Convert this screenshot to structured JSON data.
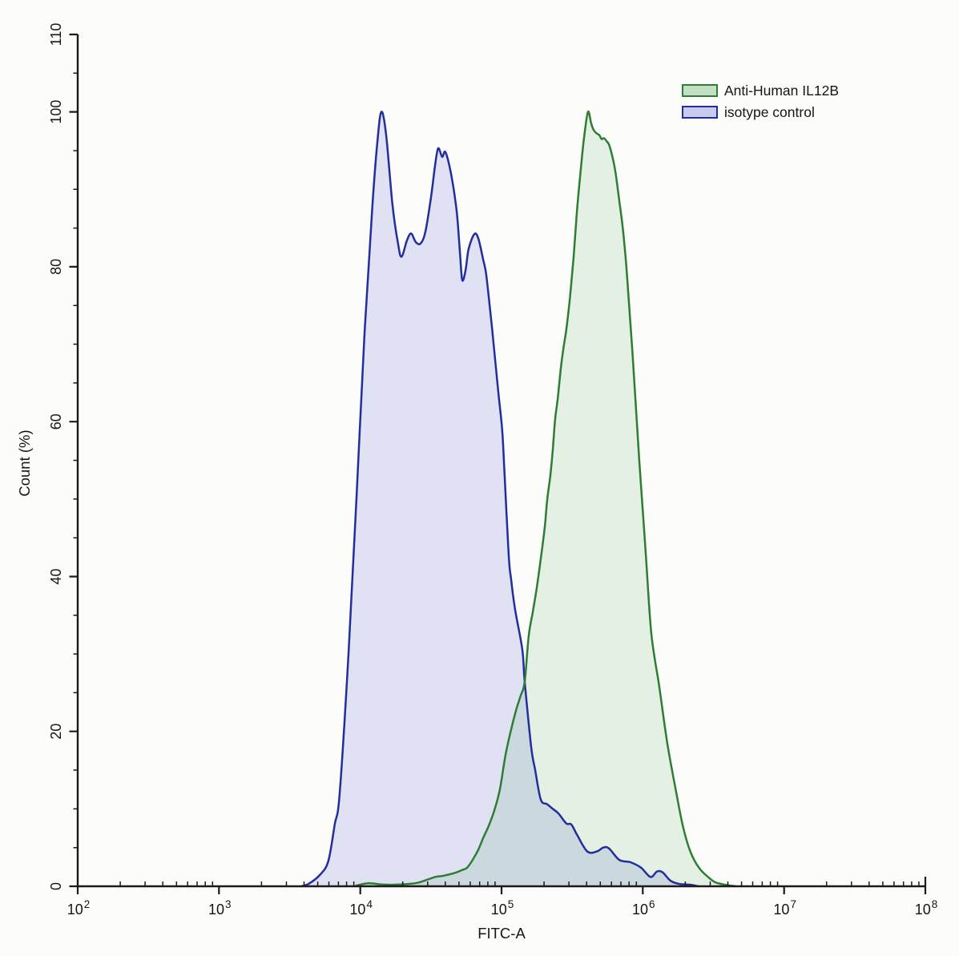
{
  "figure": {
    "background": "#fcfcfa",
    "axis_color": "#1b1b1b",
    "text_color": "#161616"
  },
  "chart_data": {
    "type": "area",
    "title": "",
    "xlabel": "FITC-A",
    "ylabel": "Count  (%)",
    "x_scale": "log10",
    "xlim": [
      100,
      100000000
    ],
    "ylim": [
      0,
      110
    ],
    "x_tick_base": "10",
    "x_tick_exponents": [
      2,
      3,
      4,
      5,
      6,
      7,
      8
    ],
    "y_major_ticks": [
      0,
      20,
      40,
      60,
      80,
      100,
      110
    ],
    "y_minor_step": 5,
    "grid": false,
    "legend_position": "top-right",
    "series": [
      {
        "name": "Anti-Human IL12B",
        "line_color": "#2e7d34",
        "fill_color": "#3da04a",
        "fill_opacity": 0.12,
        "legend_fill_opacity": 0.3,
        "points": [
          [
            9400,
            0.1
          ],
          [
            11400,
            0.4
          ],
          [
            13900,
            0.25
          ],
          [
            16900,
            0.2
          ],
          [
            22000,
            0.3
          ],
          [
            26100,
            0.5
          ],
          [
            33800,
            1.2
          ],
          [
            38600,
            1.35
          ],
          [
            46200,
            1.7
          ],
          [
            52700,
            2.1
          ],
          [
            57000,
            2.4
          ],
          [
            62400,
            3.4
          ],
          [
            68400,
            4.7
          ],
          [
            74000,
            6.2
          ],
          [
            81100,
            7.8
          ],
          [
            88900,
            9.8
          ],
          [
            97300,
            12.5
          ],
          [
            107900,
            17.4
          ],
          [
            124800,
            22.3
          ],
          [
            136000,
            24.5
          ],
          [
            145900,
            26.4
          ],
          [
            155600,
            32.3
          ],
          [
            166300,
            35.4
          ],
          [
            177500,
            38.5
          ],
          [
            189600,
            42.3
          ],
          [
            202300,
            46.4
          ],
          [
            210400,
            49.9
          ],
          [
            221400,
            53
          ],
          [
            230700,
            56.4
          ],
          [
            239400,
            60.3
          ],
          [
            250000,
            63
          ],
          [
            262500,
            66.8
          ],
          [
            272800,
            69.2
          ],
          [
            287900,
            72
          ],
          [
            304900,
            76
          ],
          [
            323000,
            81
          ],
          [
            341300,
            87
          ],
          [
            361400,
            92
          ],
          [
            382700,
            96.5
          ],
          [
            409200,
            100
          ],
          [
            431000,
            98.5
          ],
          [
            448000,
            97.7
          ],
          [
            466000,
            97.3
          ],
          [
            492000,
            97
          ],
          [
            510900,
            96.5
          ],
          [
            531000,
            96.6
          ],
          [
            556000,
            96.2
          ],
          [
            575600,
            95.8
          ],
          [
            598200,
            94.8
          ],
          [
            629800,
            93
          ],
          [
            654900,
            91
          ],
          [
            682000,
            88.5
          ],
          [
            717800,
            85.4
          ],
          [
            746300,
            82.3
          ],
          [
            776200,
            78.5
          ],
          [
            851100,
            68
          ],
          [
            944100,
            55
          ],
          [
            1049000,
            43
          ],
          [
            1150000,
            32.6
          ],
          [
            1310000,
            25.7
          ],
          [
            1493000,
            18.4
          ],
          [
            1746000,
            11.6
          ],
          [
            1937000,
            7.5
          ],
          [
            2179000,
            4.4
          ],
          [
            2518000,
            2.3
          ],
          [
            2944000,
            1.1
          ],
          [
            3273000,
            0.5
          ],
          [
            3828000,
            0.2
          ],
          [
            4539000,
            0
          ]
        ]
      },
      {
        "name": "isotype control",
        "line_color": "#232e9d",
        "fill_color": "#5058cf",
        "fill_opacity": 0.16,
        "legend_fill_opacity": 0.3,
        "points": [
          [
            3800,
            0
          ],
          [
            4300,
            0.3
          ],
          [
            5200,
            1.5
          ],
          [
            5950,
            3.3
          ],
          [
            6600,
            8
          ],
          [
            7150,
            12
          ],
          [
            8260,
            30
          ],
          [
            9400,
            50
          ],
          [
            10700,
            71
          ],
          [
            12200,
            88
          ],
          [
            13200,
            96
          ],
          [
            14100,
            100
          ],
          [
            15250,
            97
          ],
          [
            16900,
            88
          ],
          [
            18500,
            83
          ],
          [
            19600,
            81.3
          ],
          [
            21400,
            83.4
          ],
          [
            22900,
            84.3
          ],
          [
            24700,
            83.2
          ],
          [
            26700,
            83
          ],
          [
            28900,
            84.5
          ],
          [
            31700,
            89
          ],
          [
            33800,
            93
          ],
          [
            35600,
            95.3
          ],
          [
            38000,
            94.2
          ],
          [
            40100,
            94.8
          ],
          [
            43900,
            92
          ],
          [
            48100,
            87.2
          ],
          [
            50700,
            82
          ],
          [
            52700,
            78.3
          ],
          [
            55600,
            79.5
          ],
          [
            58500,
            82.3
          ],
          [
            64100,
            84.2
          ],
          [
            68400,
            83.7
          ],
          [
            74000,
            81
          ],
          [
            78000,
            78.9
          ],
          [
            84300,
            73.3
          ],
          [
            86500,
            71.3
          ],
          [
            94800,
            63.9
          ],
          [
            101200,
            58.8
          ],
          [
            105200,
            53
          ],
          [
            112400,
            42.7
          ],
          [
            116900,
            39.6
          ],
          [
            124800,
            35.7
          ],
          [
            140300,
            30.6
          ],
          [
            145900,
            26.4
          ],
          [
            162200,
            18
          ],
          [
            173000,
            15
          ],
          [
            189600,
            11.2
          ],
          [
            210400,
            10.6
          ],
          [
            230700,
            10
          ],
          [
            252900,
            9.4
          ],
          [
            287900,
            8.1
          ],
          [
            311400,
            8
          ],
          [
            341300,
            6.7
          ],
          [
            404400,
            4.5
          ],
          [
            472900,
            4.5
          ],
          [
            525000,
            5
          ],
          [
            575600,
            4.9
          ],
          [
            682000,
            3.4
          ],
          [
            818800,
            3.1
          ],
          [
            970800,
            2.4
          ],
          [
            1135000,
            1.2
          ],
          [
            1259000,
            1.9
          ],
          [
            1380000,
            1.8
          ],
          [
            1574000,
            0.7
          ],
          [
            1816000,
            0.3
          ],
          [
            2179000,
            0.2
          ],
          [
            2483000,
            0
          ]
        ]
      }
    ]
  }
}
